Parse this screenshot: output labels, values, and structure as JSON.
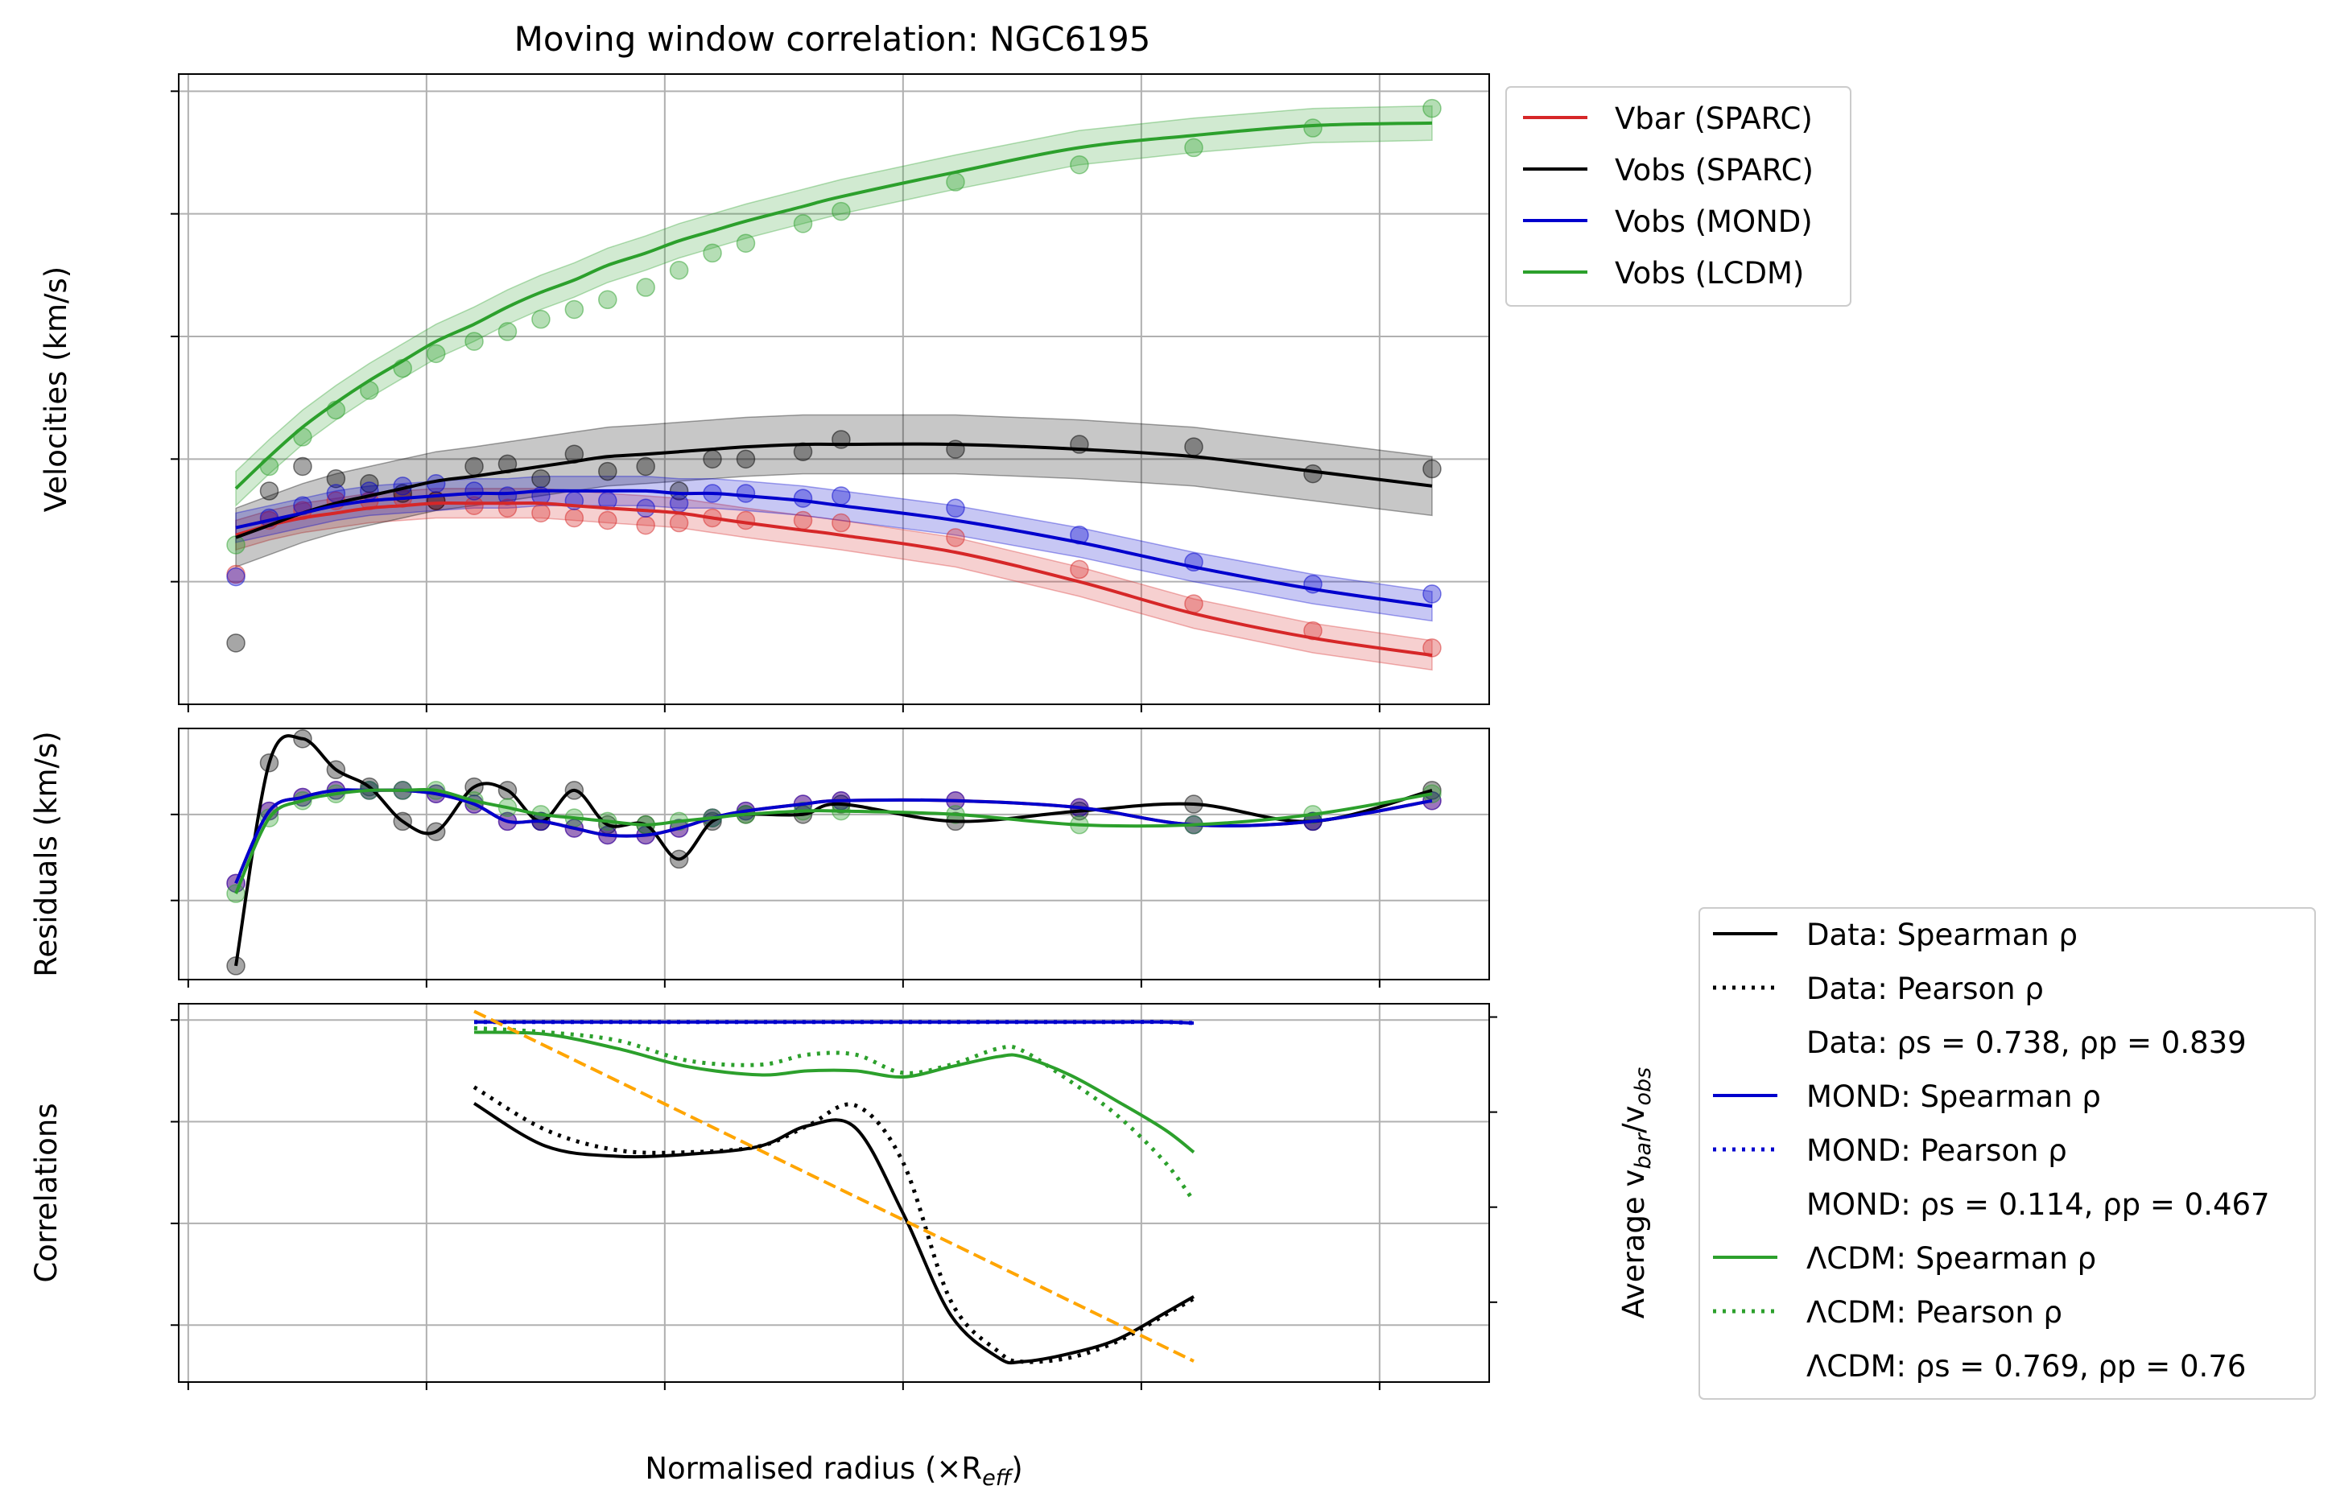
{
  "chart_data": [
    {
      "type": "line",
      "title": "Moving window correlation: NGC6195",
      "ylabel": "Velocities (km/s)",
      "xlim": [
        -0.02,
        2.73
      ],
      "ylim": [
        150,
        407
      ],
      "yticks": [
        "200",
        "250",
        "300",
        "350",
        "400"
      ],
      "grid": true,
      "legend_position": "outside-right-top",
      "legend": [
        "Vbar (SPARC)",
        "Vobs (SPARC)",
        "Vobs (MOND)",
        "Vobs (LCDM)"
      ],
      "points_x": [
        0.1,
        0.17,
        0.24,
        0.31,
        0.38,
        0.45,
        0.52,
        0.6,
        0.67,
        0.74,
        0.81,
        0.88,
        0.96,
        1.03,
        1.1,
        1.17,
        1.29,
        1.37,
        1.61,
        1.87,
        2.11,
        2.36,
        2.61
      ],
      "series": [
        {
          "name": "Vbar (SPARC)",
          "color": "#d62728",
          "points": [
            203,
            225,
            229,
            233,
            233,
            234,
            233,
            231,
            230,
            228,
            226,
            225,
            223,
            224,
            226,
            225,
            225,
            224,
            218,
            205,
            191,
            180,
            173
          ],
          "curve": [
            219,
            223,
            226,
            228,
            230,
            231,
            232,
            232,
            232,
            232,
            231,
            230,
            229,
            228,
            226,
            224,
            221,
            219,
            212,
            200,
            187,
            177,
            170
          ],
          "band": 6
        },
        {
          "name": "Vobs (SPARC)",
          "color": "#000000",
          "points": [
            175,
            237,
            247,
            242,
            240,
            236,
            233,
            247,
            248,
            242,
            252,
            245,
            247,
            237,
            250,
            250,
            253,
            258,
            254,
            256,
            255,
            244,
            246
          ],
          "curve": [
            218,
            223,
            228,
            232,
            235,
            238,
            241,
            243,
            245,
            247,
            249,
            251,
            252,
            253,
            254,
            255,
            256,
            256,
            256,
            254,
            251,
            245,
            239
          ],
          "band": 12
        },
        {
          "name": "Vobs (MOND)",
          "color": "#0000cd",
          "points": [
            202,
            226,
            231,
            236,
            237,
            239,
            240,
            237,
            235,
            235,
            233,
            233,
            230,
            232,
            236,
            236,
            234,
            235,
            230,
            219,
            208,
            199,
            195
          ],
          "curve": [
            222,
            225,
            228,
            231,
            233,
            234,
            235,
            236,
            236,
            237,
            237,
            237,
            237,
            236,
            236,
            235,
            233,
            231,
            225,
            216,
            206,
            197,
            190
          ],
          "band": 6
        },
        {
          "name": "Vobs (LCDM)",
          "color": "#2ca02c",
          "points": [
            215,
            247,
            259,
            270,
            278,
            287,
            293,
            298,
            302,
            307,
            311,
            315,
            320,
            327,
            334,
            338,
            346,
            351,
            363,
            370,
            377,
            385,
            393
          ],
          "curve": [
            238,
            251,
            263,
            273,
            282,
            290,
            298,
            305,
            312,
            318,
            323,
            329,
            334,
            339,
            343,
            347,
            353,
            357,
            367,
            377,
            382,
            386,
            387
          ],
          "band": 7
        }
      ]
    },
    {
      "type": "line",
      "ylabel": "Residuals (km/s)",
      "xlim": [
        -0.02,
        2.73
      ],
      "ylim": [
        -48,
        25
      ],
      "yticks": [
        "0",
        "−25"
      ],
      "grid": true,
      "points_x": [
        0.1,
        0.17,
        0.24,
        0.31,
        0.38,
        0.45,
        0.52,
        0.6,
        0.67,
        0.74,
        0.81,
        0.88,
        0.96,
        1.03,
        1.1,
        1.17,
        1.29,
        1.37,
        1.61,
        1.87,
        2.11,
        2.36,
        2.61
      ],
      "series": [
        {
          "name": "Vbar (SPARC)",
          "color": "#d62728",
          "values": [
            -20,
            1,
            5,
            7,
            7,
            7,
            6,
            3,
            -2,
            -2,
            -4,
            -6,
            -6,
            -4,
            -1,
            1,
            3,
            4,
            4,
            2,
            -3,
            -2,
            4
          ]
        },
        {
          "name": "Vobs (SPARC)",
          "color": "#000000",
          "values": [
            -44,
            15,
            22,
            13,
            8,
            -2,
            -5,
            8,
            7,
            -2,
            7,
            -3,
            -3,
            -13,
            -2,
            0,
            0,
            3,
            -2,
            1,
            3,
            -2,
            7
          ]
        },
        {
          "name": "Vobs (MOND)",
          "color": "#0000cd",
          "values": [
            -20,
            1,
            5,
            7,
            7,
            7,
            6,
            3,
            -2,
            -2,
            -4,
            -6,
            -6,
            -4,
            -1,
            1,
            3,
            4,
            4,
            2,
            -3,
            -2,
            4
          ]
        },
        {
          "name": "Vobs (LCDM)",
          "color": "#2ca02c",
          "values": [
            -23,
            -1,
            4,
            6,
            7,
            7,
            7,
            4,
            2,
            0,
            -1,
            -2,
            -3,
            -2,
            -1,
            0,
            1,
            1,
            0,
            -3,
            -3,
            0,
            6
          ]
        }
      ]
    },
    {
      "type": "line",
      "ylabel": "Correlations",
      "xlabel": "Normalised radius (×R",
      "xlabel_sub": "eff",
      "xlabel_close": ")",
      "xlim": [
        -0.02,
        2.73
      ],
      "ylim": [
        -0.78,
        1.08
      ],
      "yticks": [
        "−0.5",
        "0.0",
        "0.5",
        "1.0"
      ],
      "xticks": [
        "0.0",
        "0.5",
        "1.0",
        "1.5",
        "2.0",
        "2.5"
      ],
      "grid": true,
      "legend_position": "outside-right-bottom",
      "x": [
        0.6,
        0.75,
        0.9,
        1.05,
        1.2,
        1.3,
        1.4,
        1.5,
        1.6,
        1.7,
        1.75,
        1.85,
        1.95,
        2.05,
        2.11
      ],
      "series": [
        {
          "name": "Data: Spearman ρ",
          "color": "#000000",
          "style": "solid",
          "values": [
            0.59,
            0.38,
            0.33,
            0.34,
            0.38,
            0.48,
            0.47,
            0.05,
            -0.45,
            -0.66,
            -0.68,
            -0.64,
            -0.57,
            -0.44,
            -0.36
          ]
        },
        {
          "name": "Data: Pearson ρ",
          "color": "#000000",
          "style": "dotted",
          "values": [
            0.67,
            0.46,
            0.36,
            0.35,
            0.38,
            0.48,
            0.58,
            0.3,
            -0.38,
            -0.63,
            -0.68,
            -0.66,
            -0.58,
            -0.45,
            -0.37
          ]
        },
        {
          "name": "MOND: Spearman ρ",
          "color": "#0000cd",
          "style": "solid",
          "values": [
            0.99,
            0.99,
            0.99,
            0.99,
            0.99,
            0.99,
            0.99,
            0.99,
            0.99,
            0.99,
            0.99,
            0.99,
            0.99,
            0.99,
            0.985
          ]
        },
        {
          "name": "MOND: Pearson ρ",
          "color": "#0000cd",
          "style": "dotted",
          "values": [
            0.99,
            0.99,
            0.99,
            0.99,
            0.99,
            0.99,
            0.99,
            0.99,
            0.99,
            0.99,
            0.99,
            0.99,
            0.99,
            0.99,
            0.985
          ]
        },
        {
          "name": "ΛCDM: Spearman ρ",
          "color": "#2ca02c",
          "style": "solid",
          "values": [
            0.94,
            0.93,
            0.86,
            0.77,
            0.73,
            0.75,
            0.75,
            0.72,
            0.77,
            0.82,
            0.82,
            0.73,
            0.6,
            0.46,
            0.35
          ]
        },
        {
          "name": "ΛCDM: Pearson ρ",
          "color": "#2ca02c",
          "style": "dotted",
          "values": [
            0.96,
            0.94,
            0.9,
            0.8,
            0.78,
            0.83,
            0.83,
            0.74,
            0.78,
            0.86,
            0.85,
            0.7,
            0.53,
            0.3,
            0.11
          ]
        }
      ],
      "secondary_axis": {
        "ylabel": "Average v",
        "ylabel_sub1": "bar",
        "ylabel_mid": "/v",
        "ylabel_sub2": "obs",
        "color": "#ffa500",
        "ylim": [
          0.758,
          0.957
        ],
        "yticks": [
          "0.80",
          "0.85",
          "0.90",
          "0.95"
        ],
        "line": {
          "x": [
            0.6,
            2.11
          ],
          "values": [
            0.953,
            0.769
          ],
          "style": "dashed"
        }
      },
      "legend": [
        {
          "label": "Data: Spearman ρ",
          "color": "#000000",
          "style": "solid"
        },
        {
          "label": "Data: Pearson ρ",
          "color": "#000000",
          "style": "dotted"
        },
        {
          "label": "Data: ρs = 0.738, ρp = 0.839",
          "color": "",
          "style": "none"
        },
        {
          "label": "MOND: Spearman ρ",
          "color": "#0000cd",
          "style": "solid"
        },
        {
          "label": "MOND: Pearson ρ",
          "color": "#0000cd",
          "style": "dotted"
        },
        {
          "label": "MOND: ρs = 0.114, ρp = 0.467",
          "color": "",
          "style": "none"
        },
        {
          "label": "ΛCDM: Spearman ρ",
          "color": "#2ca02c",
          "style": "solid"
        },
        {
          "label": "ΛCDM: Pearson ρ",
          "color": "#2ca02c",
          "style": "dotted"
        },
        {
          "label": "ΛCDM: ρs = 0.769, ρp = 0.76",
          "color": "",
          "style": "none"
        }
      ]
    }
  ]
}
